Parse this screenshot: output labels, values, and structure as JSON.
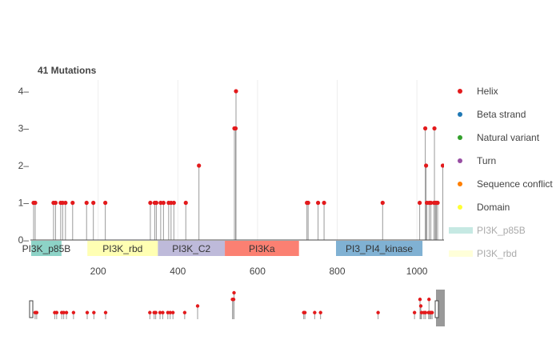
{
  "chart_data": {
    "type": "needle-plot",
    "title": "41 Mutations",
    "xlabel": "",
    "ylabel": "",
    "xlim": [
      30,
      1068
    ],
    "ylim": [
      0,
      4
    ],
    "x_ticks": [
      200,
      400,
      600,
      800,
      1000
    ],
    "y_ticks": [
      0,
      1,
      2,
      3,
      4
    ],
    "grid": true,
    "legend_position": "right",
    "series": [
      {
        "name": "Helix",
        "color": "#e31a1c"
      },
      {
        "name": "Beta strand",
        "color": "#1f78b4"
      },
      {
        "name": "Natural variant",
        "color": "#33a02c"
      },
      {
        "name": "Turn",
        "color": "#984ea3"
      },
      {
        "name": "Sequence conflict",
        "color": "#ff7f00"
      },
      {
        "name": "Domain",
        "color": "#ffff33"
      }
    ],
    "domains": [
      {
        "name": "PI3K_p85B",
        "start": 32,
        "end": 108,
        "color": "#8dd3c7"
      },
      {
        "name": "PI3K_rbd",
        "start": 173,
        "end": 350,
        "color": "#ffffb3"
      },
      {
        "name": "PI3K_C2",
        "start": 350,
        "end": 518,
        "color": "#bebada"
      },
      {
        "name": "PI3Ka",
        "start": 518,
        "end": 704,
        "color": "#fb8072"
      },
      {
        "name": "PI3_PI4_kinase",
        "start": 797,
        "end": 1014,
        "color": "#80b1d3"
      }
    ],
    "legend_domains": [
      {
        "name": "PI3K_p85B",
        "color": "#8dd3c7"
      },
      {
        "name": "PI3K_rbd",
        "color": "#ffffb3"
      }
    ],
    "mutations": [
      {
        "x": 38,
        "y": 1
      },
      {
        "x": 42,
        "y": 1
      },
      {
        "x": 88,
        "y": 1
      },
      {
        "x": 93,
        "y": 1
      },
      {
        "x": 106,
        "y": 1
      },
      {
        "x": 111,
        "y": 1
      },
      {
        "x": 118,
        "y": 1
      },
      {
        "x": 136,
        "y": 1
      },
      {
        "x": 171,
        "y": 1
      },
      {
        "x": 188,
        "y": 1
      },
      {
        "x": 218,
        "y": 1
      },
      {
        "x": 331,
        "y": 1
      },
      {
        "x": 342,
        "y": 1
      },
      {
        "x": 346,
        "y": 1
      },
      {
        "x": 357,
        "y": 1
      },
      {
        "x": 364,
        "y": 1
      },
      {
        "x": 377,
        "y": 1
      },
      {
        "x": 383,
        "y": 1
      },
      {
        "x": 390,
        "y": 1
      },
      {
        "x": 420,
        "y": 1
      },
      {
        "x": 453,
        "y": 2
      },
      {
        "x": 542,
        "y": 3
      },
      {
        "x": 545,
        "y": 3
      },
      {
        "x": 546,
        "y": 4
      },
      {
        "x": 724,
        "y": 1
      },
      {
        "x": 727,
        "y": 1
      },
      {
        "x": 752,
        "y": 1
      },
      {
        "x": 767,
        "y": 1
      },
      {
        "x": 914,
        "y": 1
      },
      {
        "x": 1007,
        "y": 1
      },
      {
        "x": 1021,
        "y": 3
      },
      {
        "x": 1023,
        "y": 2
      },
      {
        "x": 1025,
        "y": 1
      },
      {
        "x": 1031,
        "y": 1
      },
      {
        "x": 1035,
        "y": 1
      },
      {
        "x": 1043,
        "y": 1
      },
      {
        "x": 1044,
        "y": 3
      },
      {
        "x": 1047,
        "y": 1
      },
      {
        "x": 1049,
        "y": 1
      },
      {
        "x": 1052,
        "y": 1
      },
      {
        "x": 1065,
        "y": 2
      }
    ]
  }
}
